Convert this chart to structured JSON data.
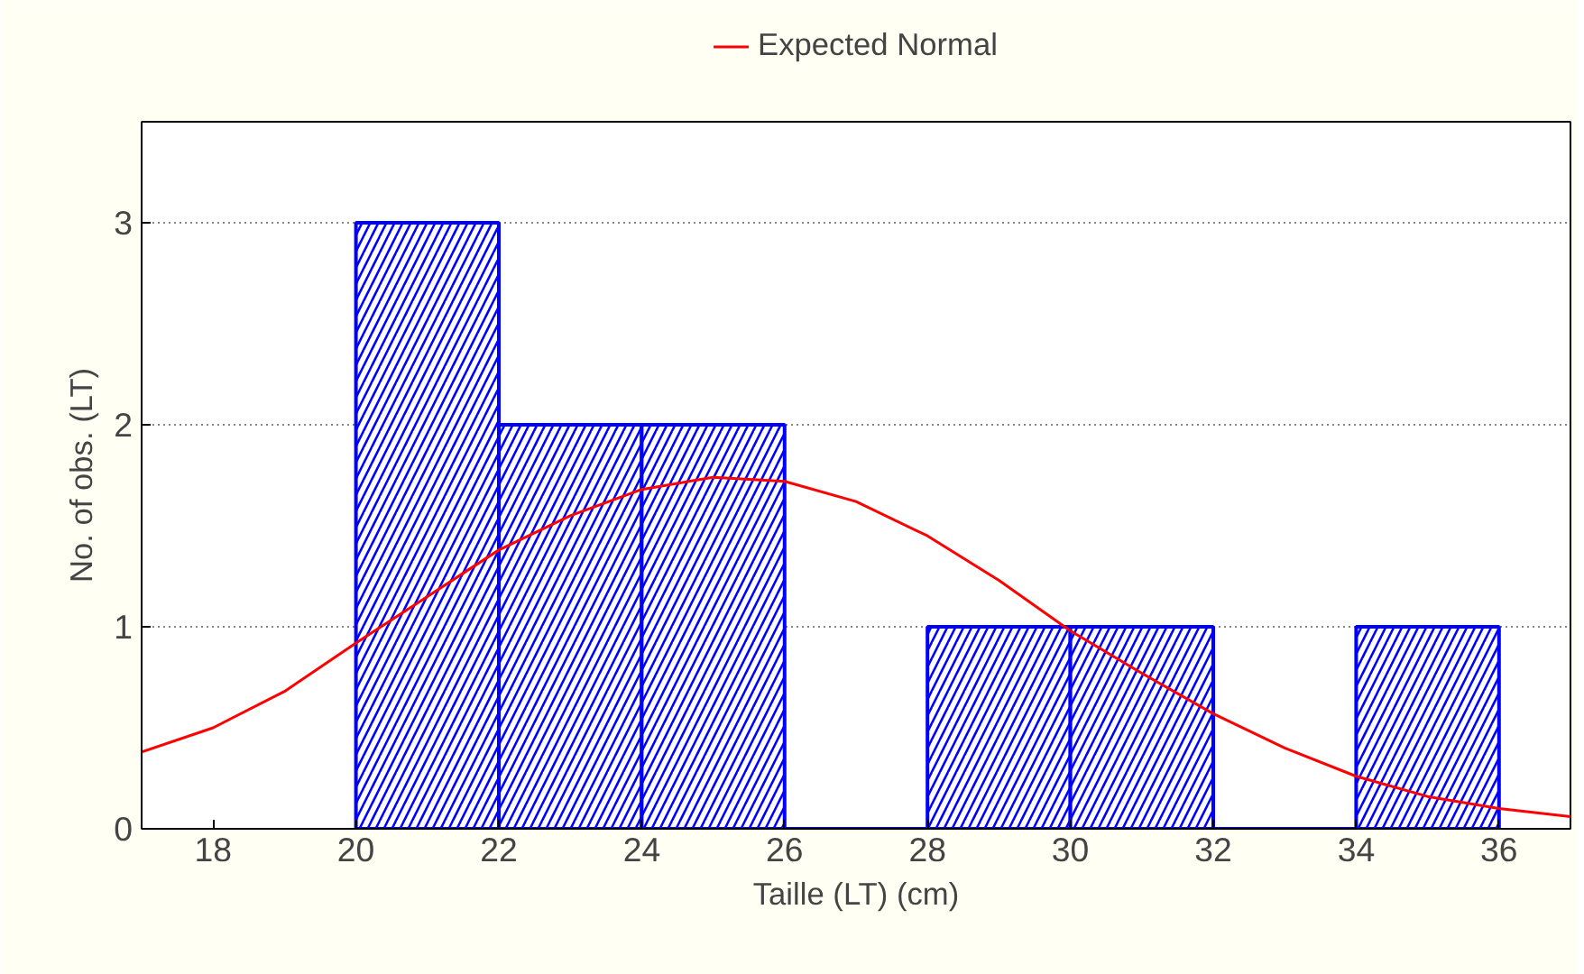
{
  "chart_data": {
    "type": "histogram",
    "xlabel": "Taille (LT) (cm)",
    "ylabel": "No. of obs. (LT)",
    "xlim": [
      17,
      37
    ],
    "xticks": [
      18,
      20,
      22,
      24,
      26,
      28,
      30,
      32,
      34,
      36
    ],
    "ylim": [
      0,
      3.5
    ],
    "yticks": [
      0,
      1,
      2,
      3
    ],
    "grid": "y",
    "legend": "top",
    "series": [
      {
        "color": "#0000ff",
        "bins": [
          20,
          22,
          24,
          26,
          28,
          30,
          32,
          34,
          36
        ],
        "values": [
          3,
          2,
          2,
          0,
          1,
          1,
          0,
          1
        ]
      },
      {
        "type": "line",
        "name": "Expected Normal",
        "color": "#ff0000",
        "x": [
          17,
          18,
          19,
          20,
          21,
          22,
          23,
          24,
          25,
          26,
          27,
          28,
          29,
          30,
          31,
          32,
          33,
          34,
          35,
          36,
          37
        ],
        "values": [
          0.38,
          0.5,
          0.68,
          0.92,
          1.15,
          1.38,
          1.55,
          1.68,
          1.74,
          1.72,
          1.62,
          1.45,
          1.23,
          0.98,
          0.77,
          0.57,
          0.4,
          0.26,
          0.16,
          0.1,
          0.06
        ]
      }
    ]
  }
}
